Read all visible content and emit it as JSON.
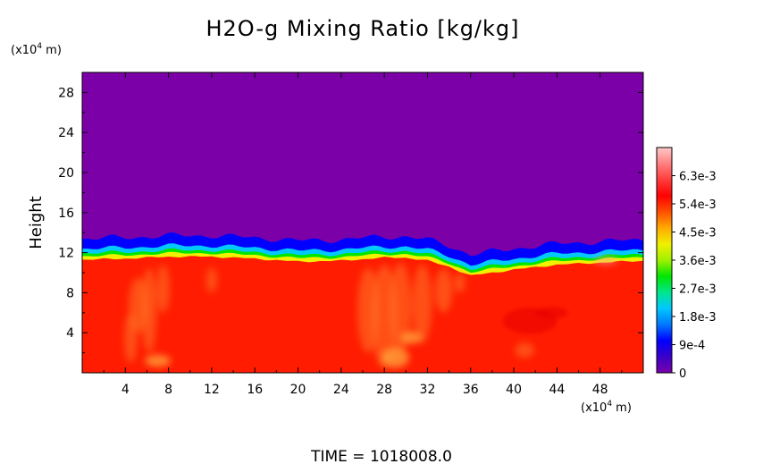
{
  "chart_data": {
    "type": "heatmap",
    "title": "H2O-g Mixing Ratio [kg/kg]",
    "ylabel": "Height",
    "y_units": "(x10",
    "x_units": "(x10",
    "units_exp": "4",
    "units_suffix": " m)",
    "x_ticks": [
      "4",
      "8",
      "12",
      "16",
      "20",
      "24",
      "28",
      "32",
      "36",
      "40",
      "44",
      "48"
    ],
    "y_ticks": [
      "4",
      "8",
      "12",
      "16",
      "20",
      "24",
      "28"
    ],
    "xlim": [
      0,
      52
    ],
    "ylim": [
      0,
      30
    ],
    "colorbar_labels": [
      "0",
      "9e-4",
      "1.8e-3",
      "2.7e-3",
      "3.6e-3",
      "4.5e-3",
      "5.4e-3",
      "6.3e-3"
    ],
    "colorbar_range": [
      0,
      0.0072
    ],
    "colors": [
      "#7a00aa",
      "#3a00c8",
      "#0000ff",
      "#0078ff",
      "#00c8ff",
      "#00e68c",
      "#00e600",
      "#a0f000",
      "#f0f000",
      "#ffaa00",
      "#ff5000",
      "#ff0000",
      "#ff3c3c",
      "#ff8080",
      "#ffc8c8"
    ],
    "background_value": "#7c00a8",
    "moist_layer_color": "#ff1c00",
    "interface_height": [
      [
        0,
        11.3
      ],
      [
        4,
        11.4
      ],
      [
        8,
        11.6
      ],
      [
        12,
        11.6
      ],
      [
        16,
        11.4
      ],
      [
        20,
        11.1
      ],
      [
        24,
        11.2
      ],
      [
        28,
        11.5
      ],
      [
        30,
        11.5
      ],
      [
        32,
        11.2
      ],
      [
        34,
        10.6
      ],
      [
        36,
        9.7
      ],
      [
        38,
        10.0
      ],
      [
        40,
        10.3
      ],
      [
        44,
        10.8
      ],
      [
        48,
        11.0
      ],
      [
        52,
        11.2
      ]
    ],
    "time_label": "TIME  =  1018008.0"
  }
}
